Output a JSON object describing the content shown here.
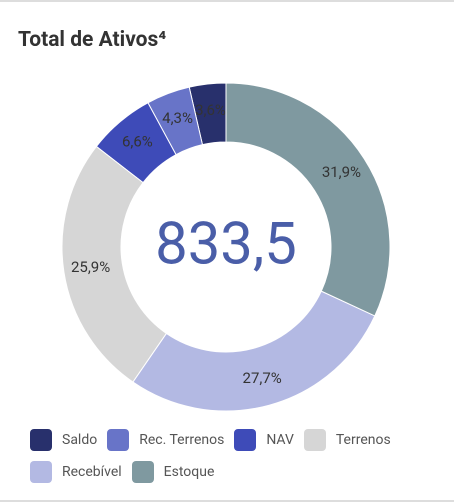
{
  "chart_data": {
    "type": "donut",
    "title": "Total de Ativos⁴",
    "center_text": "833,5",
    "categories": [
      "Saldo",
      "Rec. Terrenos",
      "NAV",
      "Terrenos",
      "Recebível",
      "Estoque"
    ],
    "values": [
      3.6,
      4.3,
      6.6,
      25.9,
      27.7,
      31.9
    ],
    "value_labels": [
      "3,6%",
      "4,3%",
      "6,6%",
      "25,9%",
      "27,7%",
      "31,9%"
    ],
    "colors": [
      "#28306c",
      "#6874c8",
      "#3e4bb8",
      "#d6d6d6",
      "#b3b9e3",
      "#7f99a0"
    ],
    "legend": "bottom"
  }
}
